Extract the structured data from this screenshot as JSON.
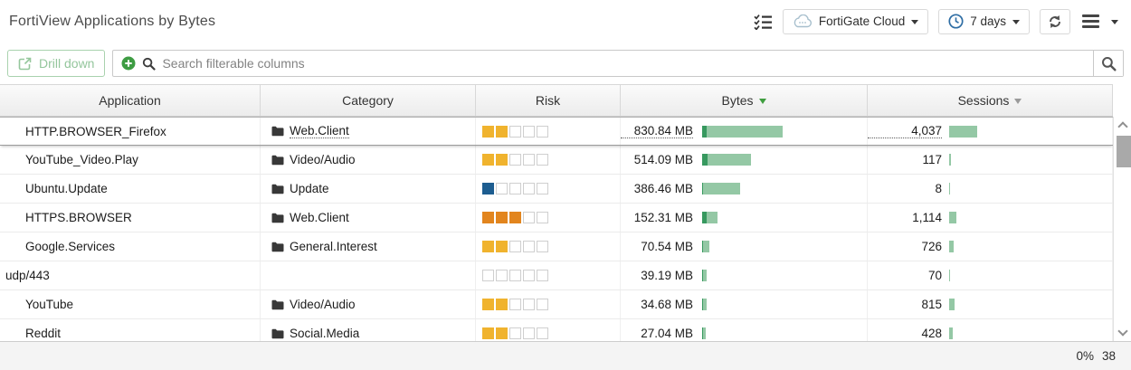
{
  "header": {
    "title": "FortiView Applications by Bytes",
    "device_dropdown": "FortiGate Cloud",
    "time_dropdown": "7 days"
  },
  "toolbar": {
    "drill_down": "Drill down",
    "search_placeholder": "Search filterable columns"
  },
  "table": {
    "columns": [
      "Application",
      "Category",
      "Risk",
      "Bytes",
      "Sessions"
    ],
    "sort": {
      "column": "Bytes",
      "direction": "desc"
    },
    "rows": [
      {
        "application": "HTTP.BROWSER_Firefox",
        "category": "Web.Client",
        "risk": {
          "filled": 2,
          "color": "risk_medium"
        },
        "bytes": "830.84 MB",
        "bytes_bar": {
          "dark": 5,
          "light": 84
        },
        "sessions": "4,037",
        "sessions_bar": 31,
        "highlighted": true
      },
      {
        "application": "YouTube_Video.Play",
        "category": "Video/Audio",
        "risk": {
          "filled": 2,
          "color": "risk_medium"
        },
        "bytes": "514.09 MB",
        "bytes_bar": {
          "dark": 6,
          "light": 48
        },
        "sessions": "117",
        "sessions_bar": 2
      },
      {
        "application": "Ubuntu.Update",
        "category": "Update",
        "risk": {
          "filled": 1,
          "color": "risk_low"
        },
        "bytes": "386.46 MB",
        "bytes_bar": {
          "dark": 1,
          "light": 41
        },
        "sessions": "8",
        "sessions_bar": 1
      },
      {
        "application": "HTTPS.BROWSER",
        "category": "Web.Client",
        "risk": {
          "filled": 3,
          "color": "risk_high"
        },
        "bytes": "152.31 MB",
        "bytes_bar": {
          "dark": 5,
          "light": 12
        },
        "sessions": "1,114",
        "sessions_bar": 8
      },
      {
        "application": "Google.Services",
        "category": "General.Interest",
        "risk": {
          "filled": 2,
          "color": "risk_medium"
        },
        "bytes": "70.54 MB",
        "bytes_bar": {
          "dark": 1,
          "light": 7
        },
        "sessions": "726",
        "sessions_bar": 5
      },
      {
        "application": "udp/443",
        "category": null,
        "risk": {
          "filled": 0,
          "color": "risk_medium"
        },
        "bytes": "39.19 MB",
        "bytes_bar": {
          "dark": 1,
          "light": 4
        },
        "sessions": "70",
        "sessions_bar": 1,
        "no_indent": true
      },
      {
        "application": "YouTube",
        "category": "Video/Audio",
        "risk": {
          "filled": 2,
          "color": "risk_medium"
        },
        "bytes": "34.68 MB",
        "bytes_bar": {
          "dark": 1,
          "light": 4
        },
        "sessions": "815",
        "sessions_bar": 6
      },
      {
        "application": "Reddit",
        "category": "Social.Media",
        "risk": {
          "filled": 2,
          "color": "risk_medium"
        },
        "bytes": "27.04 MB",
        "bytes_bar": {
          "dark": 1,
          "light": 3
        },
        "sessions": "428",
        "sessions_bar": 4
      }
    ]
  },
  "statusbar": {
    "progress": "0%",
    "count": "38"
  },
  "colors": {
    "risk_medium": "#f0b32e",
    "risk_low": "#1d5d90",
    "risk_high": "#e2851e",
    "bar_dark": "#37995f",
    "bar_light": "#94c8a5",
    "sort_active": "#3f9e3f",
    "accent_green": "#3e9c43",
    "clock_blue": "#2e6da4",
    "cloud_gray_blue": "#a7bfcd"
  }
}
